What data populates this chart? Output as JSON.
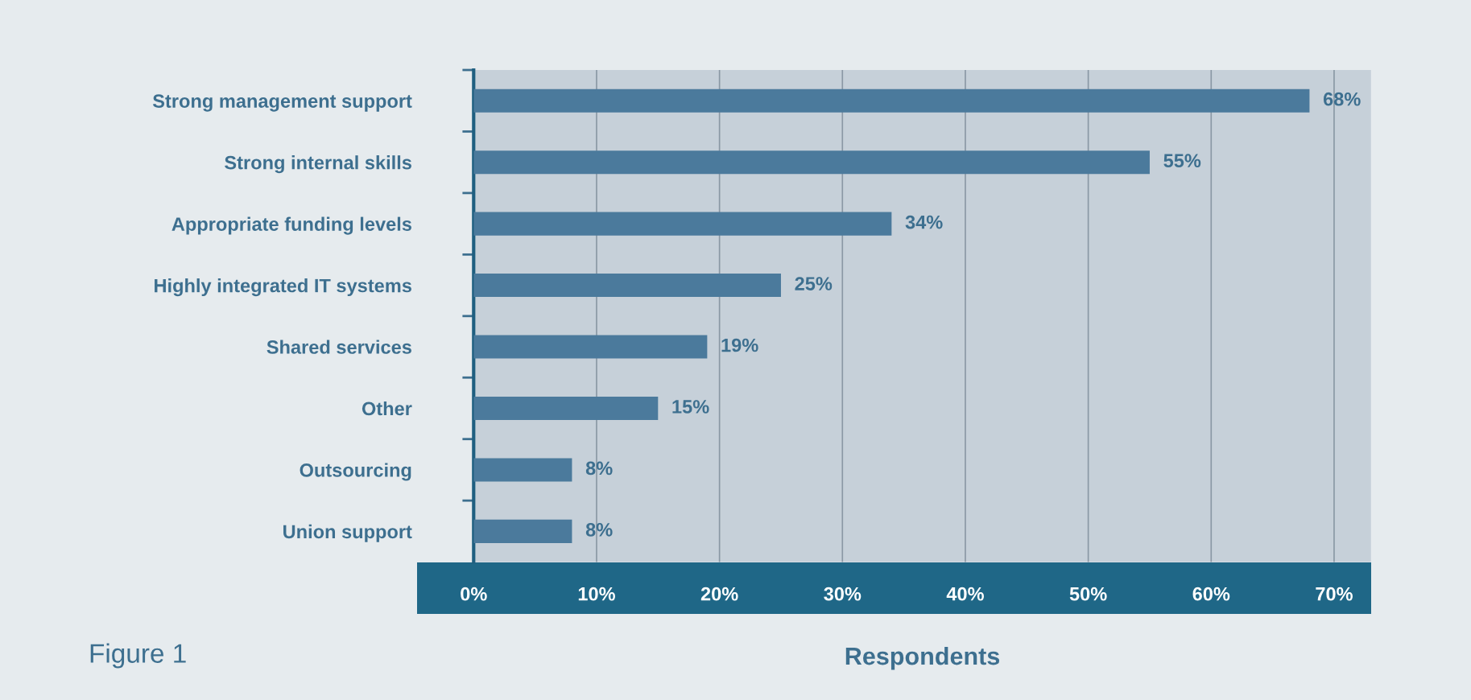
{
  "chart_data": {
    "type": "bar",
    "orientation": "horizontal",
    "xlabel": "Respondents",
    "annotations": [
      "Figure 1"
    ],
    "categories": [
      "Strong management support",
      "Strong internal skills",
      "Appropriate funding levels",
      "Highly integrated IT systems",
      "Shared services",
      "Other",
      "Outsourcing",
      "Union support"
    ],
    "values": [
      68,
      55,
      34,
      25,
      19,
      15,
      8,
      8
    ],
    "value_labels": [
      "68%",
      "55%",
      "34%",
      "25%",
      "19%",
      "15%",
      "8%",
      "8%"
    ],
    "color": "#4b7a9c",
    "xlim": [
      0,
      73
    ],
    "xticks": [
      {
        "value": 0,
        "label": "0%"
      },
      {
        "value": 10,
        "label": "10%"
      },
      {
        "value": 20,
        "label": "20%"
      },
      {
        "value": 30,
        "label": "30%"
      },
      {
        "value": 40,
        "label": "40%"
      },
      {
        "value": 50,
        "label": "50%"
      },
      {
        "value": 60,
        "label": "60%"
      },
      {
        "value": 70,
        "label": "70%"
      }
    ],
    "grid": "x",
    "legend": false
  }
}
